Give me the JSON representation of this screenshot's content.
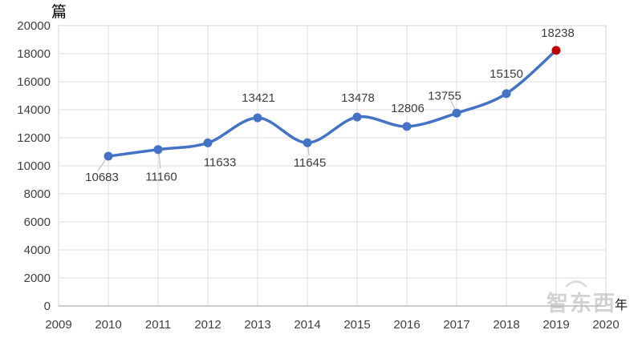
{
  "chart_data": {
    "type": "line",
    "title": "",
    "ylabel": "篇",
    "xlabel": "年",
    "x": [
      2010,
      2011,
      2012,
      2013,
      2014,
      2015,
      2016,
      2017,
      2018,
      2019
    ],
    "values": [
      10683,
      11160,
      11633,
      13421,
      11645,
      13478,
      12806,
      13755,
      15150,
      18238
    ],
    "data_labels": [
      "10683",
      "11160",
      "11633",
      "13421",
      "11645",
      "13478",
      "12806",
      "13755",
      "15150",
      "18238"
    ],
    "x_ticks": [
      "2009",
      "2010",
      "2011",
      "2012",
      "2013",
      "2014",
      "2015",
      "2016",
      "2017",
      "2018",
      "2019",
      "2020"
    ],
    "y_ticks": [
      "0",
      "2000",
      "4000",
      "6000",
      "8000",
      "10000",
      "12000",
      "14000",
      "16000",
      "18000",
      "20000"
    ],
    "xlim": [
      2009,
      2020
    ],
    "ylim": [
      0,
      20000
    ],
    "grid": true,
    "legend_position": "none",
    "series_color": "#4472C4",
    "last_point_color": "#C00000",
    "gridline_color": "#DCDCDC",
    "axis_line_color": "#999999",
    "label_color": "#3d3d3d"
  },
  "watermark": {
    "text": "智东西"
  }
}
